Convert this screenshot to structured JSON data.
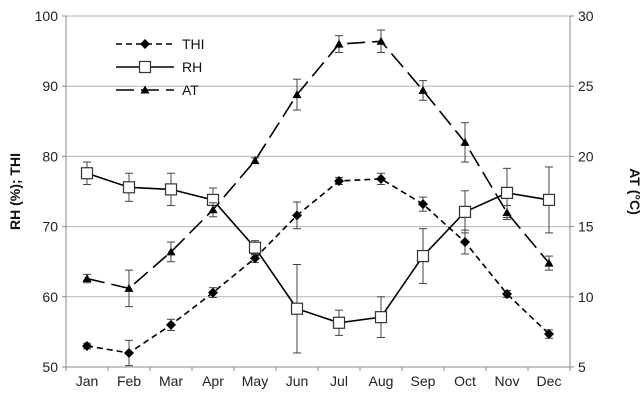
{
  "chart_data": {
    "type": "line",
    "categories": [
      "Jan",
      "Feb",
      "Mar",
      "Apr",
      "May",
      "Jun",
      "Jul",
      "Aug",
      "Sep",
      "Oct",
      "Nov",
      "Dec"
    ],
    "ylabel_left": "RH (%); THI",
    "ylabel_right": "AT (°C)",
    "ylim_left": [
      50,
      100
    ],
    "ylim_right": [
      5,
      30
    ],
    "yticks_left": [
      50,
      60,
      70,
      80,
      90,
      100
    ],
    "yticks_right": [
      5,
      10,
      15,
      20,
      25,
      30
    ],
    "grid": "horizontal",
    "legend": "top-left",
    "series": [
      {
        "name": "THI",
        "axis": "left",
        "style": "short-dash",
        "marker": "diamond",
        "color": "#000000",
        "values": [
          53.0,
          52.0,
          56.0,
          60.6,
          65.5,
          71.6,
          76.5,
          76.8,
          73.2,
          67.8,
          60.4,
          54.7
        ],
        "errors": [
          0.4,
          1.8,
          0.8,
          0.7,
          0.6,
          1.9,
          0.5,
          0.8,
          1.0,
          1.7,
          0.5,
          0.6
        ]
      },
      {
        "name": "RH",
        "axis": "left",
        "style": "solid",
        "marker": "square-open",
        "color": "#000000",
        "values": [
          77.6,
          75.6,
          75.3,
          73.8,
          67.0,
          58.3,
          56.3,
          57.1,
          65.8,
          72.1,
          74.8,
          73.8
        ],
        "errors": [
          1.6,
          2.0,
          2.3,
          1.7,
          1.0,
          6.3,
          1.8,
          2.9,
          3.9,
          3.0,
          3.5,
          4.7
        ]
      },
      {
        "name": "AT",
        "axis": "right",
        "style": "long-dash",
        "marker": "triangle",
        "color": "#000000",
        "values": [
          11.3,
          10.6,
          13.2,
          16.2,
          19.7,
          24.4,
          28.0,
          28.2,
          24.7,
          21.0,
          16.0,
          12.4
        ],
        "errors": [
          0.3,
          1.3,
          0.7,
          0.5,
          0.2,
          1.1,
          0.6,
          0.8,
          0.7,
          1.4,
          0.5,
          0.5
        ]
      }
    ]
  }
}
